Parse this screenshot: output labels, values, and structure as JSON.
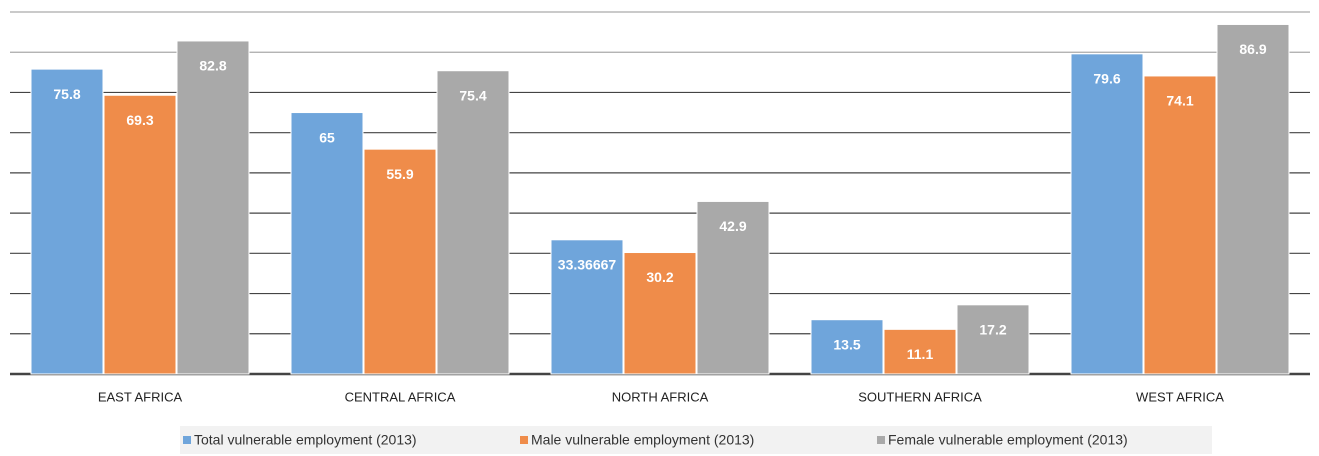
{
  "chart_data": {
    "type": "bar",
    "categories": [
      "EAST AFRICA",
      "CENTRAL AFRICA",
      "NORTH  AFRICA",
      "SOUTHERN AFRICA",
      "WEST AFRICA"
    ],
    "series": [
      {
        "name": "Total vulnerable employment (2013)",
        "color": "#6fa5db",
        "values": [
          75.8,
          65,
          33.36667,
          13.5,
          79.6
        ]
      },
      {
        "name": "Male vulnerable employment (2013)",
        "color": "#ef8c4a",
        "values": [
          69.3,
          55.9,
          30.2,
          11.1,
          74.1
        ]
      },
      {
        "name": "Female vulnerable employment (2013)",
        "color": "#a9a9a9",
        "values": [
          82.8,
          75.4,
          42.9,
          17.2,
          86.9
        ]
      }
    ],
    "ylim": [
      0,
      90
    ],
    "yticks": [
      0,
      10,
      20,
      30,
      40,
      50,
      60,
      70,
      80,
      90
    ],
    "grid": true,
    "legend": "bottom"
  }
}
